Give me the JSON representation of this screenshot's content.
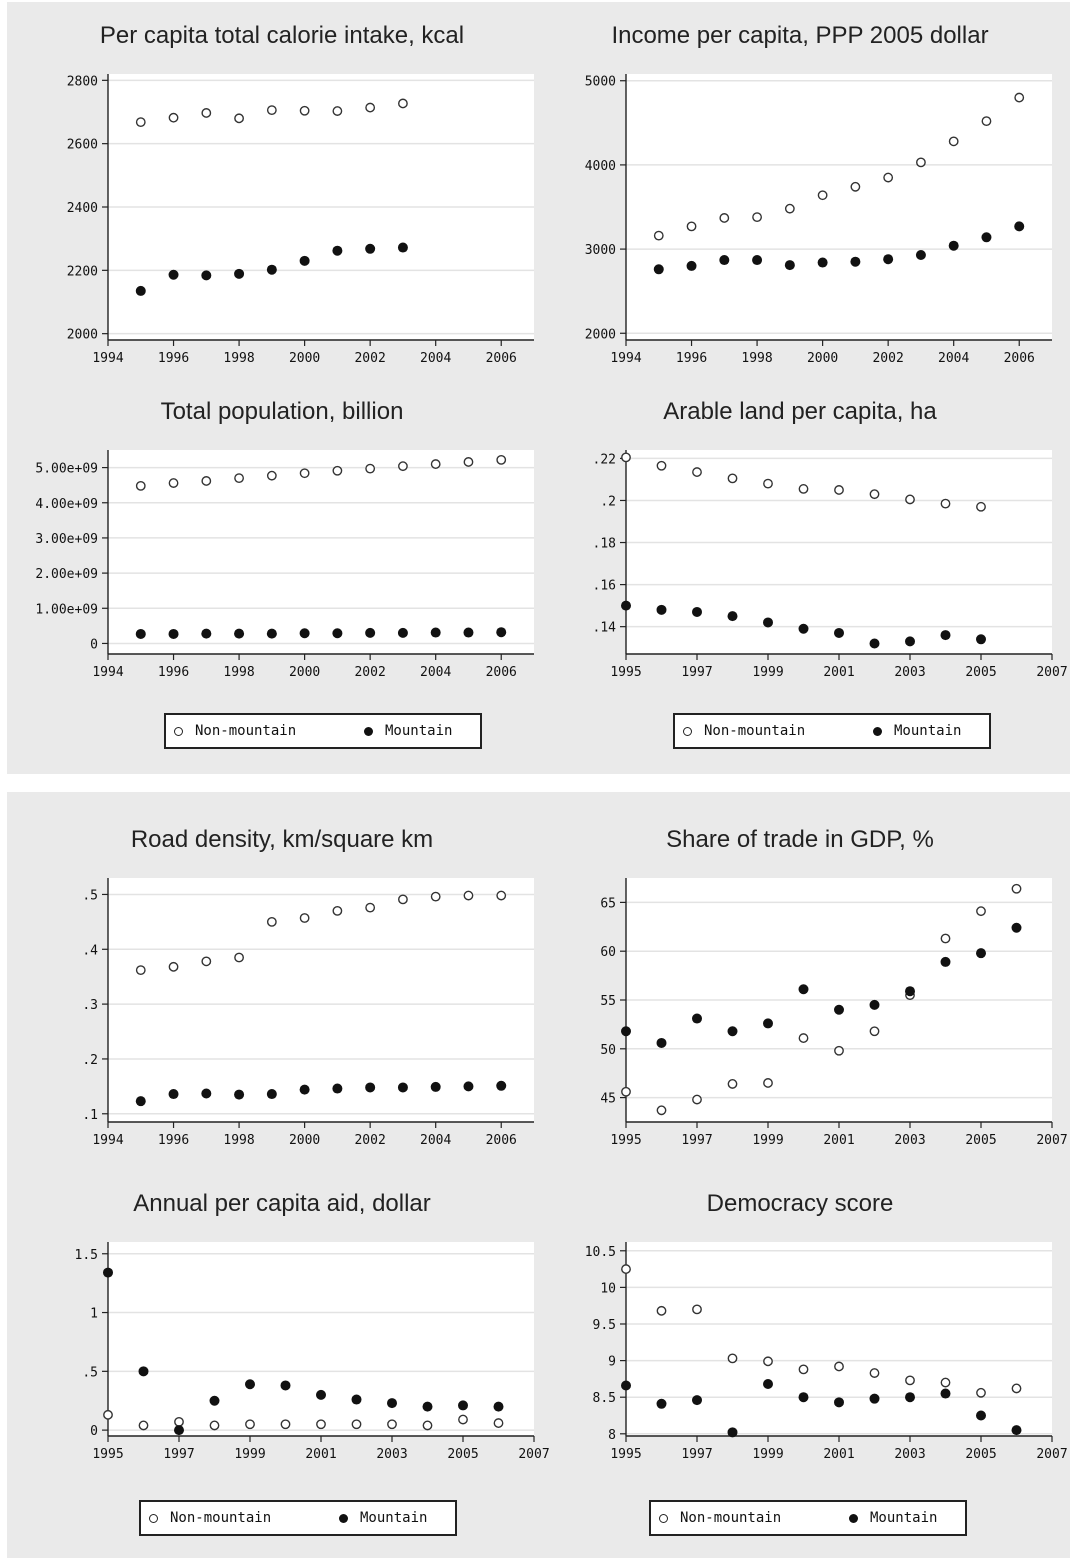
{
  "legends": [
    {
      "non_mountain": "Non-mountain",
      "mountain": "Mountain"
    },
    {
      "non_mountain": "Non-mountain",
      "mountain": "Mountain"
    },
    {
      "non_mountain": "Non-mountain",
      "mountain": "Mountain"
    },
    {
      "non_mountain": "Non-mountain",
      "mountain": "Mountain"
    }
  ],
  "chart_data": [
    {
      "type": "scatter",
      "title": "Per capita total calorie intake, kcal",
      "xlim": [
        1994,
        2007
      ],
      "ylim": [
        1980,
        2820
      ],
      "xticks": [
        1994,
        1996,
        1998,
        2000,
        2002,
        2004,
        2006
      ],
      "xtick_labels": [
        "1994",
        "1996",
        "1998",
        "2000",
        "2002",
        "2004",
        "2006"
      ],
      "yticks": [
        2000,
        2200,
        2400,
        2600,
        2800
      ],
      "ytick_labels": [
        "2000",
        "2200",
        "2400",
        "2600",
        "2800"
      ],
      "grid": true,
      "series": [
        {
          "name": "Non-mountain",
          "marker": "open",
          "x": [
            1995,
            1996,
            1997,
            1998,
            1999,
            2000,
            2001,
            2002,
            2003
          ],
          "y": [
            2668,
            2682,
            2697,
            2680,
            2706,
            2704,
            2703,
            2714,
            2727
          ]
        },
        {
          "name": "Mountain",
          "marker": "filled",
          "x": [
            1995,
            1996,
            1997,
            1998,
            1999,
            2000,
            2001,
            2002,
            2003
          ],
          "y": [
            2135,
            2186,
            2184,
            2189,
            2202,
            2230,
            2262,
            2268,
            2272
          ]
        }
      ]
    },
    {
      "type": "scatter",
      "title": "Income per capita, PPP 2005 dollar",
      "xlim": [
        1994,
        2007
      ],
      "ylim": [
        1920,
        5080
      ],
      "xticks": [
        1994,
        1996,
        1998,
        2000,
        2002,
        2004,
        2006
      ],
      "xtick_labels": [
        "1994",
        "1996",
        "1998",
        "2000",
        "2002",
        "2004",
        "2006"
      ],
      "yticks": [
        2000,
        3000,
        4000,
        5000
      ],
      "ytick_labels": [
        "2000",
        "3000",
        "4000",
        "5000"
      ],
      "grid": true,
      "series": [
        {
          "name": "Non-mountain",
          "marker": "open",
          "x": [
            1995,
            1996,
            1997,
            1998,
            1999,
            2000,
            2001,
            2002,
            2003,
            2004,
            2005,
            2006
          ],
          "y": [
            3160,
            3270,
            3370,
            3380,
            3480,
            3640,
            3740,
            3850,
            4030,
            4280,
            4520,
            4800
          ]
        },
        {
          "name": "Mountain",
          "marker": "filled",
          "x": [
            1995,
            1996,
            1997,
            1998,
            1999,
            2000,
            2001,
            2002,
            2003,
            2004,
            2005,
            2006
          ],
          "y": [
            2760,
            2800,
            2870,
            2870,
            2810,
            2840,
            2850,
            2880,
            2930,
            3040,
            3140,
            3270
          ]
        }
      ]
    },
    {
      "type": "scatter",
      "title": "Total population, billion",
      "xlim": [
        1994,
        2007
      ],
      "ylim": [
        -0.3,
        5.5
      ],
      "xticks": [
        1994,
        1996,
        1998,
        2000,
        2002,
        2004,
        2006
      ],
      "xtick_labels": [
        "1994",
        "1996",
        "1998",
        "2000",
        "2002",
        "2004",
        "2006"
      ],
      "yticks": [
        0,
        1,
        2,
        3,
        4,
        5
      ],
      "ytick_labels": [
        "0",
        "1.00e+09",
        "2.00e+09",
        "3.00e+09",
        "4.00e+09",
        "5.00e+09"
      ],
      "grid": true,
      "series": [
        {
          "name": "Non-mountain",
          "marker": "open",
          "x": [
            1995,
            1996,
            1997,
            1998,
            1999,
            2000,
            2001,
            2002,
            2003,
            2004,
            2005,
            2006
          ],
          "y": [
            4.48,
            4.56,
            4.62,
            4.7,
            4.77,
            4.84,
            4.91,
            4.97,
            5.04,
            5.1,
            5.16,
            5.22
          ]
        },
        {
          "name": "Mountain",
          "marker": "filled",
          "x": [
            1995,
            1996,
            1997,
            1998,
            1999,
            2000,
            2001,
            2002,
            2003,
            2004,
            2005,
            2006
          ],
          "y": [
            0.27,
            0.27,
            0.28,
            0.28,
            0.28,
            0.29,
            0.29,
            0.3,
            0.3,
            0.31,
            0.31,
            0.32
          ]
        }
      ]
    },
    {
      "type": "scatter",
      "title": "Arable land per capita, ha",
      "xlim": [
        1995,
        2007
      ],
      "ylim": [
        0.127,
        0.224
      ],
      "xticks": [
        1995,
        1997,
        1999,
        2001,
        2003,
        2005,
        2007
      ],
      "xtick_labels": [
        "1995",
        "1997",
        "1999",
        "2001",
        "2003",
        "2005",
        "2007"
      ],
      "yticks": [
        0.14,
        0.16,
        0.18,
        0.2,
        0.22
      ],
      "ytick_labels": [
        ".14",
        ".16",
        ".18",
        ".2",
        ".22"
      ],
      "grid": true,
      "series": [
        {
          "name": "Non-mountain",
          "marker": "open",
          "x": [
            1995,
            1996,
            1997,
            1998,
            1999,
            2000,
            2001,
            2002,
            2003,
            2004,
            2005
          ],
          "y": [
            0.2205,
            0.2165,
            0.2135,
            0.2105,
            0.208,
            0.2055,
            0.205,
            0.203,
            0.2005,
            0.1985,
            0.197
          ]
        },
        {
          "name": "Mountain",
          "marker": "filled",
          "x": [
            1995,
            1996,
            1997,
            1998,
            1999,
            2000,
            2001,
            2002,
            2003,
            2004,
            2005
          ],
          "y": [
            0.15,
            0.148,
            0.147,
            0.145,
            0.142,
            0.139,
            0.137,
            0.132,
            0.133,
            0.136,
            0.134
          ]
        }
      ]
    },
    {
      "type": "scatter",
      "title": "Road density, km/square km",
      "xlim": [
        1994,
        2007
      ],
      "ylim": [
        0.085,
        0.53
      ],
      "xticks": [
        1994,
        1996,
        1998,
        2000,
        2002,
        2004,
        2006
      ],
      "xtick_labels": [
        "1994",
        "1996",
        "1998",
        "2000",
        "2002",
        "2004",
        "2006"
      ],
      "yticks": [
        0.1,
        0.2,
        0.3,
        0.4,
        0.5
      ],
      "ytick_labels": [
        ".1",
        ".2",
        ".3",
        ".4",
        ".5"
      ],
      "grid": true,
      "series": [
        {
          "name": "Non-mountain",
          "marker": "open",
          "x": [
            1995,
            1996,
            1997,
            1998,
            1999,
            2000,
            2001,
            2002,
            2003,
            2004,
            2005,
            2006
          ],
          "y": [
            0.362,
            0.368,
            0.378,
            0.385,
            0.45,
            0.457,
            0.47,
            0.476,
            0.491,
            0.496,
            0.498,
            0.498
          ]
        },
        {
          "name": "Mountain",
          "marker": "filled",
          "x": [
            1995,
            1996,
            1997,
            1998,
            1999,
            2000,
            2001,
            2002,
            2003,
            2004,
            2005,
            2006
          ],
          "y": [
            0.123,
            0.136,
            0.137,
            0.135,
            0.136,
            0.144,
            0.146,
            0.148,
            0.148,
            0.149,
            0.15,
            0.151
          ]
        }
      ]
    },
    {
      "type": "scatter",
      "title": "Share of trade in GDP, %",
      "xlim": [
        1995,
        2007
      ],
      "ylim": [
        42.5,
        67.5
      ],
      "xticks": [
        1995,
        1997,
        1999,
        2001,
        2003,
        2005,
        2007
      ],
      "xtick_labels": [
        "1995",
        "1997",
        "1999",
        "2001",
        "2003",
        "2005",
        "2007"
      ],
      "yticks": [
        45,
        50,
        55,
        60,
        65
      ],
      "ytick_labels": [
        "45",
        "50",
        "55",
        "60",
        "65"
      ],
      "grid": true,
      "series": [
        {
          "name": "Non-mountain",
          "marker": "open",
          "x": [
            1995,
            1996,
            1997,
            1998,
            1999,
            2000,
            2001,
            2002,
            2003,
            2004,
            2005,
            2006
          ],
          "y": [
            45.6,
            43.7,
            44.8,
            46.4,
            46.5,
            51.1,
            49.8,
            51.8,
            55.5,
            61.3,
            64.1,
            66.4
          ]
        },
        {
          "name": "Mountain",
          "marker": "filled",
          "x": [
            1995,
            1996,
            1997,
            1998,
            1999,
            2000,
            2001,
            2002,
            2003,
            2004,
            2005,
            2006
          ],
          "y": [
            51.8,
            50.6,
            53.1,
            51.8,
            52.6,
            56.1,
            54.0,
            54.5,
            55.9,
            58.9,
            59.8,
            62.4
          ]
        }
      ]
    },
    {
      "type": "scatter",
      "title": "Annual per capita aid, dollar",
      "xlim": [
        1995,
        2007
      ],
      "ylim": [
        -0.05,
        1.6
      ],
      "xticks": [
        1995,
        1997,
        1999,
        2001,
        2003,
        2005,
        2007
      ],
      "xtick_labels": [
        "1995",
        "1997",
        "1999",
        "2001",
        "2003",
        "2005",
        "2007"
      ],
      "yticks": [
        0,
        0.5,
        1,
        1.5
      ],
      "ytick_labels": [
        "0",
        ".5",
        "1",
        "1.5"
      ],
      "grid": true,
      "series": [
        {
          "name": "Non-mountain",
          "marker": "open",
          "x": [
            1995,
            1996,
            1997,
            1998,
            1999,
            2000,
            2001,
            2002,
            2003,
            2004,
            2005,
            2006
          ],
          "y": [
            0.13,
            0.04,
            0.07,
            0.04,
            0.05,
            0.05,
            0.05,
            0.05,
            0.05,
            0.04,
            0.09,
            0.06
          ]
        },
        {
          "name": "Mountain",
          "marker": "filled",
          "x": [
            1995,
            1996,
            1997,
            1998,
            1999,
            2000,
            2001,
            2002,
            2003,
            2004,
            2005,
            2006
          ],
          "y": [
            1.34,
            0.5,
            0.0,
            0.25,
            0.39,
            0.38,
            0.3,
            0.26,
            0.23,
            0.2,
            0.21,
            0.2
          ]
        }
      ]
    },
    {
      "type": "scatter",
      "title": "Democracy score",
      "xlim": [
        1995,
        2007
      ],
      "ylim": [
        7.97,
        10.62
      ],
      "xticks": [
        1995,
        1997,
        1999,
        2001,
        2003,
        2005,
        2007
      ],
      "xtick_labels": [
        "1995",
        "1997",
        "1999",
        "2001",
        "2003",
        "2005",
        "2007"
      ],
      "yticks": [
        8,
        8.5,
        9,
        9.5,
        10,
        10.5
      ],
      "ytick_labels": [
        "8",
        "8.5",
        "9",
        "9.5",
        "10",
        "10.5"
      ],
      "grid": true,
      "series": [
        {
          "name": "Non-mountain",
          "marker": "open",
          "x": [
            1995,
            1996,
            1997,
            1998,
            1999,
            2000,
            2001,
            2002,
            2003,
            2004,
            2005,
            2006
          ],
          "y": [
            10.25,
            9.68,
            9.7,
            9.03,
            8.99,
            8.88,
            8.92,
            8.83,
            8.73,
            8.7,
            8.56,
            8.62
          ]
        },
        {
          "name": "Mountain",
          "marker": "filled",
          "x": [
            1995,
            1996,
            1997,
            1998,
            1999,
            2000,
            2001,
            2002,
            2003,
            2004,
            2005,
            2006
          ],
          "y": [
            8.66,
            8.41,
            8.46,
            8.02,
            8.68,
            8.5,
            8.43,
            8.48,
            8.5,
            8.55,
            8.25,
            8.05
          ]
        }
      ]
    }
  ]
}
